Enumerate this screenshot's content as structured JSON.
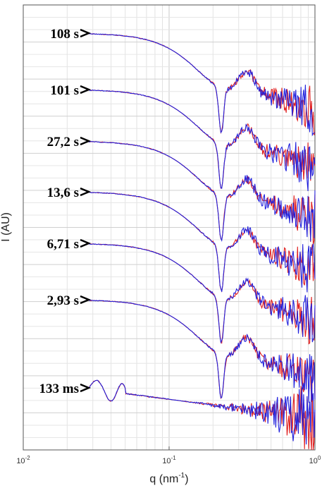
{
  "chart_data": {
    "type": "line",
    "title": "",
    "xlabel": "q (nm",
    "xlabel_superscript": "-1",
    "xlabel_suffix": ")",
    "ylabel": "I (AU)",
    "xscale": "log",
    "yscale": "log",
    "xlim": [
      0.01,
      1
    ],
    "x_ticks": [
      {
        "value": 0.01,
        "base": "10",
        "exp": "-2"
      },
      {
        "value": 0.1,
        "base": "10",
        "exp": "-1"
      },
      {
        "value": 1,
        "base": "10",
        "exp": "0"
      }
    ],
    "grid": true,
    "colors": {
      "measured": "#2222dd",
      "fit": "#e02020"
    },
    "series": [
      {
        "label": "108 s",
        "q_start": 0.028,
        "dip_q": 0.228,
        "decay": 1.0,
        "noise": 1.0
      },
      {
        "label": "101 s",
        "q_start": 0.028,
        "dip_q": 0.228,
        "decay": 1.0,
        "noise": 1.0
      },
      {
        "label": "27,2 s",
        "q_start": 0.028,
        "dip_q": 0.228,
        "decay": 1.0,
        "noise": 1.0
      },
      {
        "label": "13,6 s",
        "q_start": 0.028,
        "dip_q": 0.228,
        "decay": 1.0,
        "noise": 1.0
      },
      {
        "label": "6,71 s",
        "q_start": 0.028,
        "dip_q": 0.228,
        "decay": 1.0,
        "noise": 1.0
      },
      {
        "label": "2,93 s",
        "q_start": 0.028,
        "dip_q": 0.228,
        "decay": 1.0,
        "noise": 1.0
      },
      {
        "label": "133 ms",
        "q_start": 0.028,
        "dip_q": 0.228,
        "decay": 0.25,
        "noise": 1.6
      }
    ]
  }
}
